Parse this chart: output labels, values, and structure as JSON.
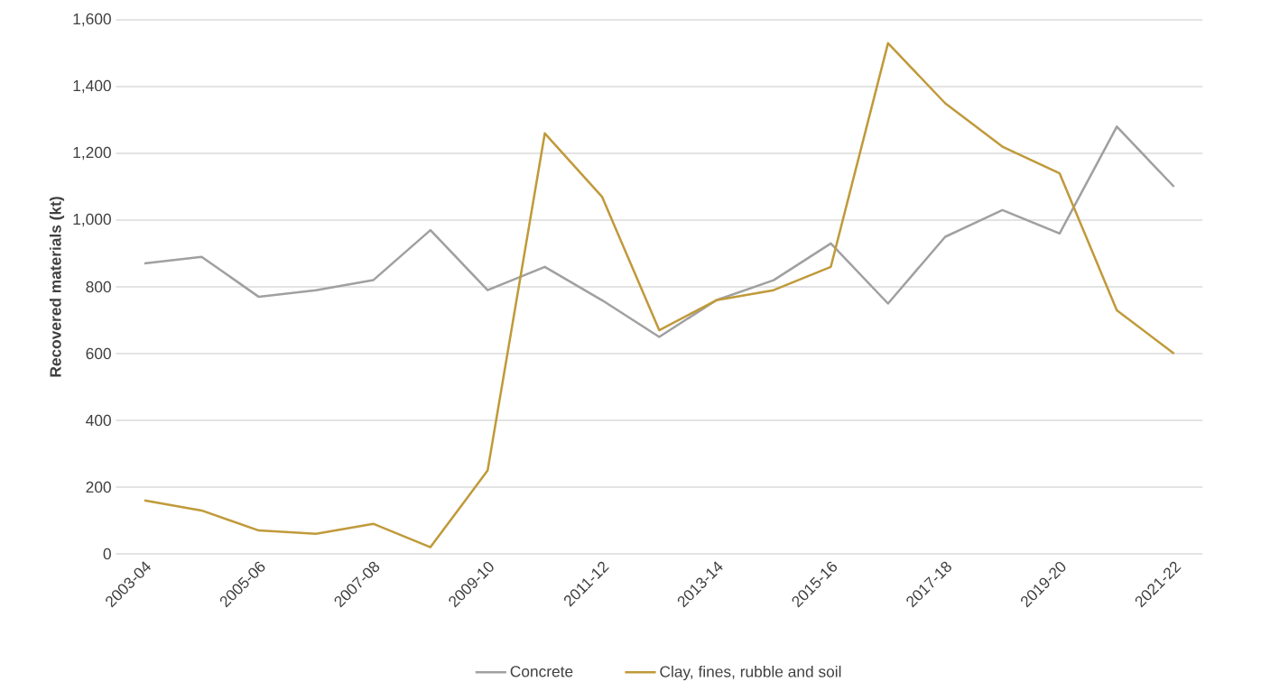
{
  "chart_data": {
    "type": "line",
    "ylabel": "Recovered materials (kt)",
    "categories": [
      "2003-04",
      null,
      "2005-06",
      null,
      "2007-08",
      null,
      "2009-10",
      null,
      "2011-12",
      null,
      "2013-14",
      null,
      "2015-16",
      null,
      "2017-18",
      null,
      "2019-20",
      null,
      "2021-22"
    ],
    "series": [
      {
        "name": "Concrete",
        "color": "#a0a0a0",
        "values": [
          870,
          890,
          770,
          790,
          820,
          970,
          790,
          860,
          760,
          650,
          760,
          820,
          930,
          750,
          950,
          1030,
          960,
          1280,
          1100
        ]
      },
      {
        "name": "Clay, fines, rubble and soil",
        "color": "#c09a3a",
        "values": [
          160,
          130,
          70,
          60,
          90,
          20,
          250,
          1260,
          1070,
          670,
          760,
          790,
          860,
          1530,
          1350,
          1220,
          1140,
          730,
          600
        ]
      }
    ],
    "ylim": [
      0,
      1600
    ],
    "yticks": [
      0,
      200,
      400,
      600,
      800,
      {
        "value": 1000,
        "label": "1,000"
      },
      {
        "value": 1200,
        "label": "1,200"
      },
      {
        "value": 1400,
        "label": "1,400"
      },
      {
        "value": 1600,
        "label": "1,600"
      }
    ],
    "grid": "y",
    "legend": "bottom"
  }
}
